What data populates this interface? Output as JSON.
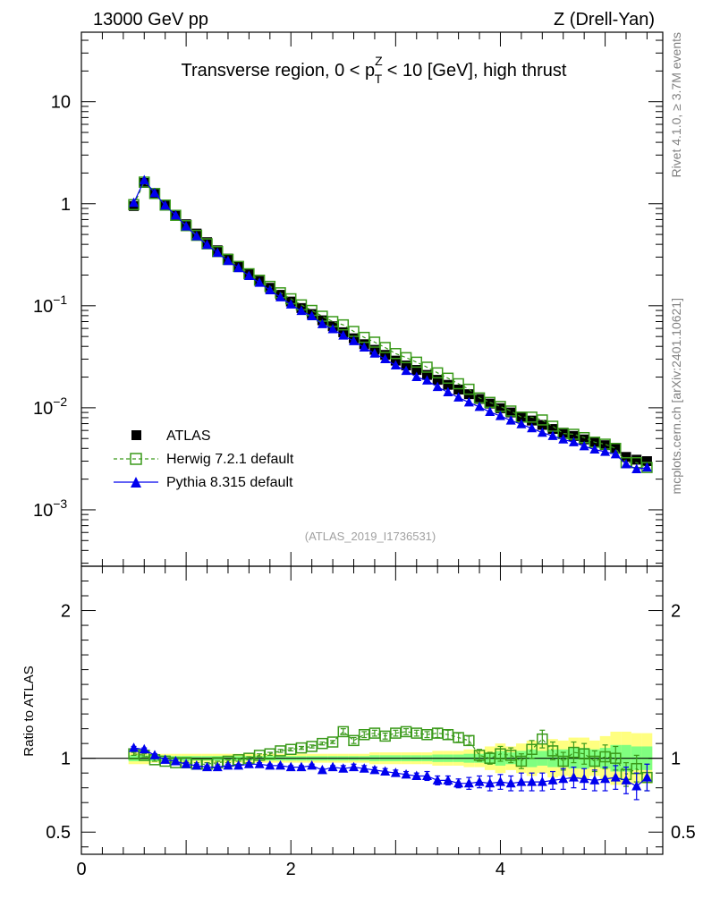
{
  "header": {
    "left": "13000 GeV pp",
    "right": "Z (Drell-Yan)"
  },
  "side_labels": {
    "rivet": "Rivet 4.1.0, ≥ 3.7M events",
    "mcplots": "mcplots.cern.ch [arXiv:2401.10621]"
  },
  "watermark": "(ATLAS_2019_I1736531)",
  "colors": {
    "atlas": "#000000",
    "herwig": "#3a9a1a",
    "pythia": "#0000ee",
    "band_yellow": "#ffff80",
    "band_green": "#80ff80"
  },
  "chart_data": [
    {
      "type": "scatter",
      "title_parts": {
        "pre": "Transverse region, 0 < p",
        "sup": "Z",
        "sub": "T",
        "post": " < 10 [GeV], high thrust"
      },
      "yscale": "log",
      "xlim": [
        0,
        5.55
      ],
      "ylim": [
        0.00028,
        48
      ],
      "y_ticks": [
        {
          "value": 0.001,
          "base": "10",
          "exp": "−3"
        },
        {
          "value": 0.01,
          "base": "10",
          "exp": "−2"
        },
        {
          "value": 0.1,
          "base": "10",
          "exp": "−1"
        },
        {
          "value": 1,
          "label": "1"
        },
        {
          "value": 10,
          "label": "10"
        }
      ],
      "legend": {
        "position": "lower-left",
        "entries": [
          {
            "key": "atlas",
            "label": "ATLAS"
          },
          {
            "key": "herwig",
            "label": "Herwig 7.2.1 default"
          },
          {
            "key": "pythia",
            "label": "Pythia 8.315 default"
          }
        ]
      },
      "x": [
        0.5,
        0.6,
        0.7,
        0.8,
        0.9,
        1.0,
        1.1,
        1.2,
        1.3,
        1.4,
        1.5,
        1.6,
        1.7,
        1.8,
        1.9,
        2.0,
        2.1,
        2.2,
        2.3,
        2.4,
        2.5,
        2.6,
        2.7,
        2.8,
        2.9,
        3.0,
        3.1,
        3.2,
        3.3,
        3.4,
        3.5,
        3.6,
        3.7,
        3.8,
        3.9,
        4.0,
        4.1,
        4.2,
        4.3,
        4.4,
        4.5,
        4.6,
        4.7,
        4.8,
        4.9,
        5.0,
        5.1,
        5.2,
        5.3,
        5.4
      ],
      "series": [
        {
          "name": "ATLAS",
          "key": "atlas",
          "values": [
            0.95,
            1.6,
            1.25,
            0.97,
            0.78,
            0.63,
            0.51,
            0.42,
            0.35,
            0.29,
            0.245,
            0.205,
            0.175,
            0.15,
            0.128,
            0.11,
            0.095,
            0.083,
            0.072,
            0.063,
            0.055,
            0.048,
            0.042,
            0.037,
            0.033,
            0.029,
            0.026,
            0.0235,
            0.021,
            0.0188,
            0.0168,
            0.0151,
            0.0136,
            0.0122,
            0.011,
            0.0099,
            0.009,
            0.0082,
            0.0075,
            0.0068,
            0.0062,
            0.0057,
            0.0053,
            0.0049,
            0.0046,
            0.0043,
            0.004,
            0.0033,
            0.0031,
            0.003
          ]
        },
        {
          "name": "Herwig 7.2.1 default",
          "key": "herwig",
          "values": [
            0.98,
            1.63,
            1.26,
            0.97,
            0.77,
            0.61,
            0.49,
            0.405,
            0.34,
            0.285,
            0.243,
            0.206,
            0.178,
            0.155,
            0.134,
            0.117,
            0.102,
            0.09,
            0.079,
            0.07,
            0.065,
            0.056,
            0.049,
            0.044,
            0.039,
            0.034,
            0.031,
            0.028,
            0.025,
            0.022,
            0.0195,
            0.0172,
            0.0152,
            0.0125,
            0.0113,
            0.0103,
            0.0093,
            0.0081,
            0.0081,
            0.0076,
            0.0066,
            0.0056,
            0.0055,
            0.0051,
            0.0046,
            0.0044,
            0.004,
            0.0029,
            0.0029,
            0.0026
          ]
        },
        {
          "name": "Pythia 8.315 default",
          "key": "pythia",
          "values": [
            1.02,
            1.7,
            1.27,
            0.96,
            0.77,
            0.6,
            0.48,
            0.395,
            0.33,
            0.275,
            0.234,
            0.196,
            0.168,
            0.142,
            0.121,
            0.103,
            0.089,
            0.079,
            0.066,
            0.059,
            0.051,
            0.045,
            0.039,
            0.034,
            0.03,
            0.026,
            0.023,
            0.02,
            0.0185,
            0.016,
            0.0142,
            0.0126,
            0.0113,
            0.0102,
            0.0091,
            0.0083,
            0.0075,
            0.0069,
            0.0063,
            0.0057,
            0.0053,
            0.0049,
            0.0046,
            0.0042,
            0.0039,
            0.0037,
            0.0035,
            0.0028,
            0.0025,
            0.0026
          ]
        }
      ]
    },
    {
      "type": "scatter",
      "ylabel": "Ratio to ATLAS",
      "xlabel_ticks": [
        "0",
        "2",
        "4"
      ],
      "xlim": [
        0,
        5.55
      ],
      "ylim": [
        0.35,
        2.3
      ],
      "y_ticks": [
        {
          "value": 0.5,
          "label": "0.5"
        },
        {
          "value": 1,
          "label": "1"
        },
        {
          "value": 2,
          "label": "2"
        }
      ],
      "reference_line": 1,
      "x": [
        0.5,
        0.6,
        0.7,
        0.8,
        0.9,
        1.0,
        1.1,
        1.2,
        1.3,
        1.4,
        1.5,
        1.6,
        1.7,
        1.8,
        1.9,
        2.0,
        2.1,
        2.2,
        2.3,
        2.4,
        2.5,
        2.6,
        2.7,
        2.8,
        2.9,
        3.0,
        3.1,
        3.2,
        3.3,
        3.4,
        3.5,
        3.6,
        3.7,
        3.8,
        3.9,
        4.0,
        4.1,
        4.2,
        4.3,
        4.4,
        4.5,
        4.6,
        4.7,
        4.8,
        4.9,
        5.0,
        5.1,
        5.2,
        5.3,
        5.4
      ],
      "band_total": [
        0.04,
        0.04,
        0.03,
        0.03,
        0.03,
        0.03,
        0.03,
        0.03,
        0.03,
        0.03,
        0.03,
        0.03,
        0.03,
        0.03,
        0.03,
        0.03,
        0.03,
        0.03,
        0.03,
        0.03,
        0.03,
        0.03,
        0.03,
        0.04,
        0.04,
        0.04,
        0.04,
        0.04,
        0.04,
        0.05,
        0.05,
        0.05,
        0.06,
        0.06,
        0.08,
        0.1,
        0.08,
        0.1,
        0.12,
        0.1,
        0.13,
        0.12,
        0.14,
        0.14,
        0.12,
        0.15,
        0.18,
        0.18,
        0.17,
        0.17
      ],
      "band_stat": [
        0.02,
        0.02,
        0.02,
        0.02,
        0.015,
        0.015,
        0.015,
        0.015,
        0.015,
        0.015,
        0.015,
        0.015,
        0.015,
        0.015,
        0.015,
        0.015,
        0.015,
        0.015,
        0.015,
        0.015,
        0.015,
        0.015,
        0.015,
        0.02,
        0.02,
        0.02,
        0.02,
        0.02,
        0.02,
        0.025,
        0.025,
        0.025,
        0.03,
        0.03,
        0.04,
        0.05,
        0.04,
        0.05,
        0.06,
        0.05,
        0.06,
        0.06,
        0.07,
        0.07,
        0.06,
        0.07,
        0.09,
        0.09,
        0.08,
        0.08
      ],
      "series": [
        {
          "name": "Herwig 7.2.1 default",
          "key": "herwig",
          "values": [
            1.03,
            1.02,
            0.99,
            0.98,
            0.97,
            0.97,
            0.96,
            0.96,
            0.97,
            0.98,
            0.99,
            1.0,
            1.02,
            1.03,
            1.05,
            1.06,
            1.07,
            1.08,
            1.1,
            1.11,
            1.18,
            1.12,
            1.16,
            1.17,
            1.15,
            1.17,
            1.18,
            1.17,
            1.16,
            1.17,
            1.16,
            1.14,
            1.12,
            1.02,
            1.0,
            1.03,
            1.02,
            0.98,
            1.06,
            1.13,
            1.05,
            0.98,
            1.04,
            1.03,
            0.98,
            1.01,
            1.0,
            0.89,
            0.93,
            0.87
          ],
          "errors": [
            0.01,
            0.01,
            0.01,
            0.01,
            0.01,
            0.01,
            0.01,
            0.01,
            0.01,
            0.01,
            0.01,
            0.01,
            0.01,
            0.01,
            0.01,
            0.01,
            0.01,
            0.01,
            0.01,
            0.01,
            0.02,
            0.02,
            0.02,
            0.02,
            0.02,
            0.02,
            0.02,
            0.02,
            0.02,
            0.03,
            0.03,
            0.03,
            0.03,
            0.04,
            0.04,
            0.05,
            0.05,
            0.05,
            0.06,
            0.06,
            0.06,
            0.06,
            0.07,
            0.07,
            0.07,
            0.08,
            0.08,
            0.08,
            0.09,
            0.09
          ]
        },
        {
          "name": "Pythia 8.315 default",
          "key": "pythia",
          "values": [
            1.07,
            1.06,
            1.02,
            0.99,
            0.98,
            0.96,
            0.95,
            0.94,
            0.94,
            0.95,
            0.95,
            0.96,
            0.96,
            0.95,
            0.95,
            0.94,
            0.94,
            0.95,
            0.92,
            0.94,
            0.93,
            0.94,
            0.93,
            0.92,
            0.91,
            0.9,
            0.89,
            0.88,
            0.88,
            0.85,
            0.85,
            0.83,
            0.83,
            0.84,
            0.83,
            0.84,
            0.83,
            0.84,
            0.84,
            0.84,
            0.85,
            0.86,
            0.87,
            0.86,
            0.85,
            0.86,
            0.87,
            0.85,
            0.81,
            0.87
          ],
          "errors": [
            0.01,
            0.01,
            0.01,
            0.01,
            0.01,
            0.01,
            0.01,
            0.01,
            0.01,
            0.01,
            0.01,
            0.01,
            0.01,
            0.01,
            0.01,
            0.01,
            0.01,
            0.01,
            0.01,
            0.01,
            0.02,
            0.02,
            0.02,
            0.02,
            0.02,
            0.02,
            0.02,
            0.02,
            0.03,
            0.03,
            0.03,
            0.03,
            0.04,
            0.04,
            0.05,
            0.05,
            0.05,
            0.06,
            0.06,
            0.06,
            0.06,
            0.07,
            0.07,
            0.07,
            0.07,
            0.08,
            0.08,
            0.09,
            0.09,
            0.09
          ]
        }
      ]
    }
  ]
}
